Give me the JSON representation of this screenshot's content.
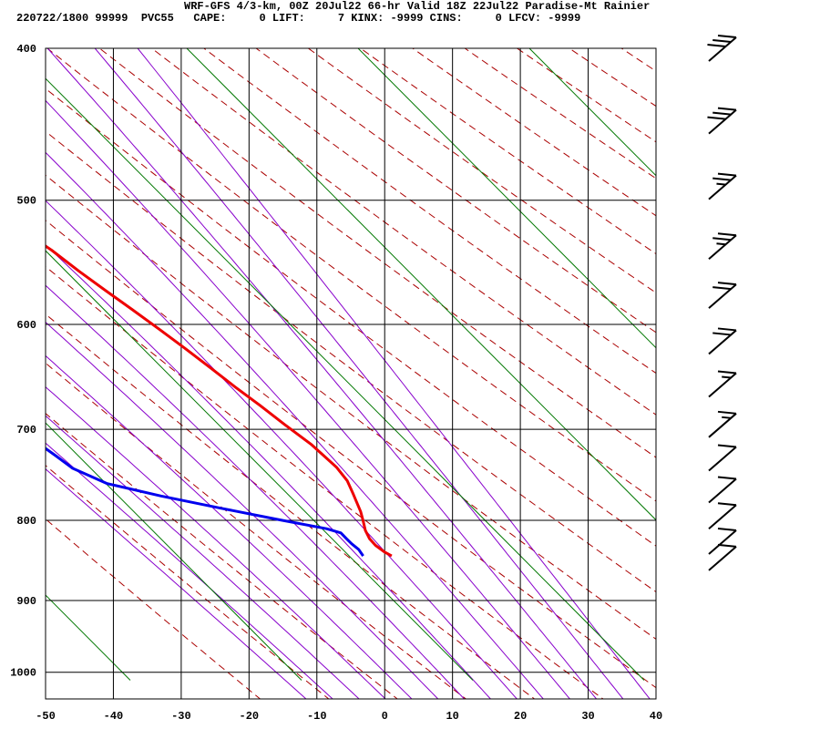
{
  "header": {
    "title": "WRF-GFS 4/3-km, 00Z 20Jul22 66-hr Valid 18Z 22Jul22 Paradise-Mt Rainier",
    "stats": "220722/1800 99999  PVC55   CAPE:     0 LIFT:     7 KINX: -9999 CINS:     0 LFCV: -9999"
  },
  "chart_data": {
    "type": "line",
    "subtype": "skew-t log-p sounding",
    "x_tick_labels": [
      "-50",
      "-40",
      "-30",
      "-20",
      "-10",
      "0",
      "10",
      "20",
      "30",
      "40"
    ],
    "y_tick_labels": [
      "400",
      "500",
      "600",
      "700",
      "800",
      "900",
      "1000"
    ],
    "x_ticks": [
      -50,
      -40,
      -30,
      -20,
      -10,
      0,
      10,
      20,
      30,
      40
    ],
    "y_ticks": [
      400,
      500,
      600,
      700,
      800,
      900,
      1000
    ],
    "xlim": [
      -50,
      40
    ],
    "ylim": [
      1040,
      400
    ],
    "y_scale": "log",
    "grid": true,
    "colors": {
      "temperature": "#ee0000",
      "dewpoint": "#0000ee",
      "dry_adiabats": "#aa0000",
      "moist_adiabats": "#8800cc",
      "mixing_ratio": "#007700",
      "grid": "#000000",
      "wind_barbs": "#000000"
    },
    "series": [
      {
        "key": "temperature",
        "points": [
          [
            9.6,
            843
          ],
          [
            8.8,
            838
          ],
          [
            8.0,
            830
          ],
          [
            7.6,
            822
          ],
          [
            7.6,
            812
          ],
          [
            8.0,
            800
          ],
          [
            8.3,
            790
          ],
          [
            8.5,
            770
          ],
          [
            8.6,
            755
          ],
          [
            8.0,
            740
          ],
          [
            6.0,
            716
          ],
          [
            3.5,
            695
          ],
          [
            1.3,
            676
          ],
          [
            -1.0,
            658
          ],
          [
            -3.2,
            640
          ],
          [
            -5.5,
            622
          ],
          [
            -8.0,
            604
          ],
          [
            -10.5,
            587
          ],
          [
            -13.0,
            571
          ],
          [
            -15.5,
            555
          ],
          [
            -18.0,
            538
          ],
          [
            -21.0,
            522
          ],
          [
            -24.0,
            506
          ],
          [
            -27.0,
            490
          ],
          [
            -30.5,
            474
          ],
          [
            -34.0,
            458
          ],
          [
            -37.5,
            443
          ],
          [
            -41.5,
            428
          ],
          [
            -45.5,
            414
          ],
          [
            -49.5,
            400
          ]
        ]
      },
      {
        "key": "dewpoint",
        "points": [
          [
            5.4,
            843
          ],
          [
            5.2,
            835
          ],
          [
            4.6,
            828
          ],
          [
            4.2,
            822
          ],
          [
            3.8,
            815
          ],
          [
            2.0,
            810
          ],
          [
            -4.0,
            800
          ],
          [
            -12.0,
            786
          ],
          [
            -20.0,
            772
          ],
          [
            -27.0,
            758
          ],
          [
            -31.0,
            741
          ],
          [
            -32.5,
            728
          ],
          [
            -34.5,
            712
          ],
          [
            -37.5,
            690
          ],
          [
            -40.5,
            665
          ],
          [
            -43.5,
            645
          ],
          [
            -46.0,
            620
          ],
          [
            -48.5,
            600
          ],
          [
            -51.5,
            578
          ],
          [
            -54.0,
            555
          ],
          [
            -56.5,
            530
          ],
          [
            -58.5,
            505
          ],
          [
            -60.0,
            490
          ],
          [
            -61.5,
            475
          ],
          [
            -63.0,
            458
          ],
          [
            -64.5,
            441
          ],
          [
            -66.0,
            425
          ],
          [
            -67.5,
            410
          ],
          [
            -68.5,
            400
          ]
        ]
      }
    ],
    "wind_barbs": {
      "pressures": [
        400,
        445,
        490,
        535,
        575,
        615,
        655,
        695,
        730,
        765,
        795,
        825,
        845
      ],
      "speed_kt": [
        30,
        30,
        25,
        25,
        20,
        20,
        15,
        15,
        10,
        10,
        10,
        10,
        10
      ]
    }
  }
}
